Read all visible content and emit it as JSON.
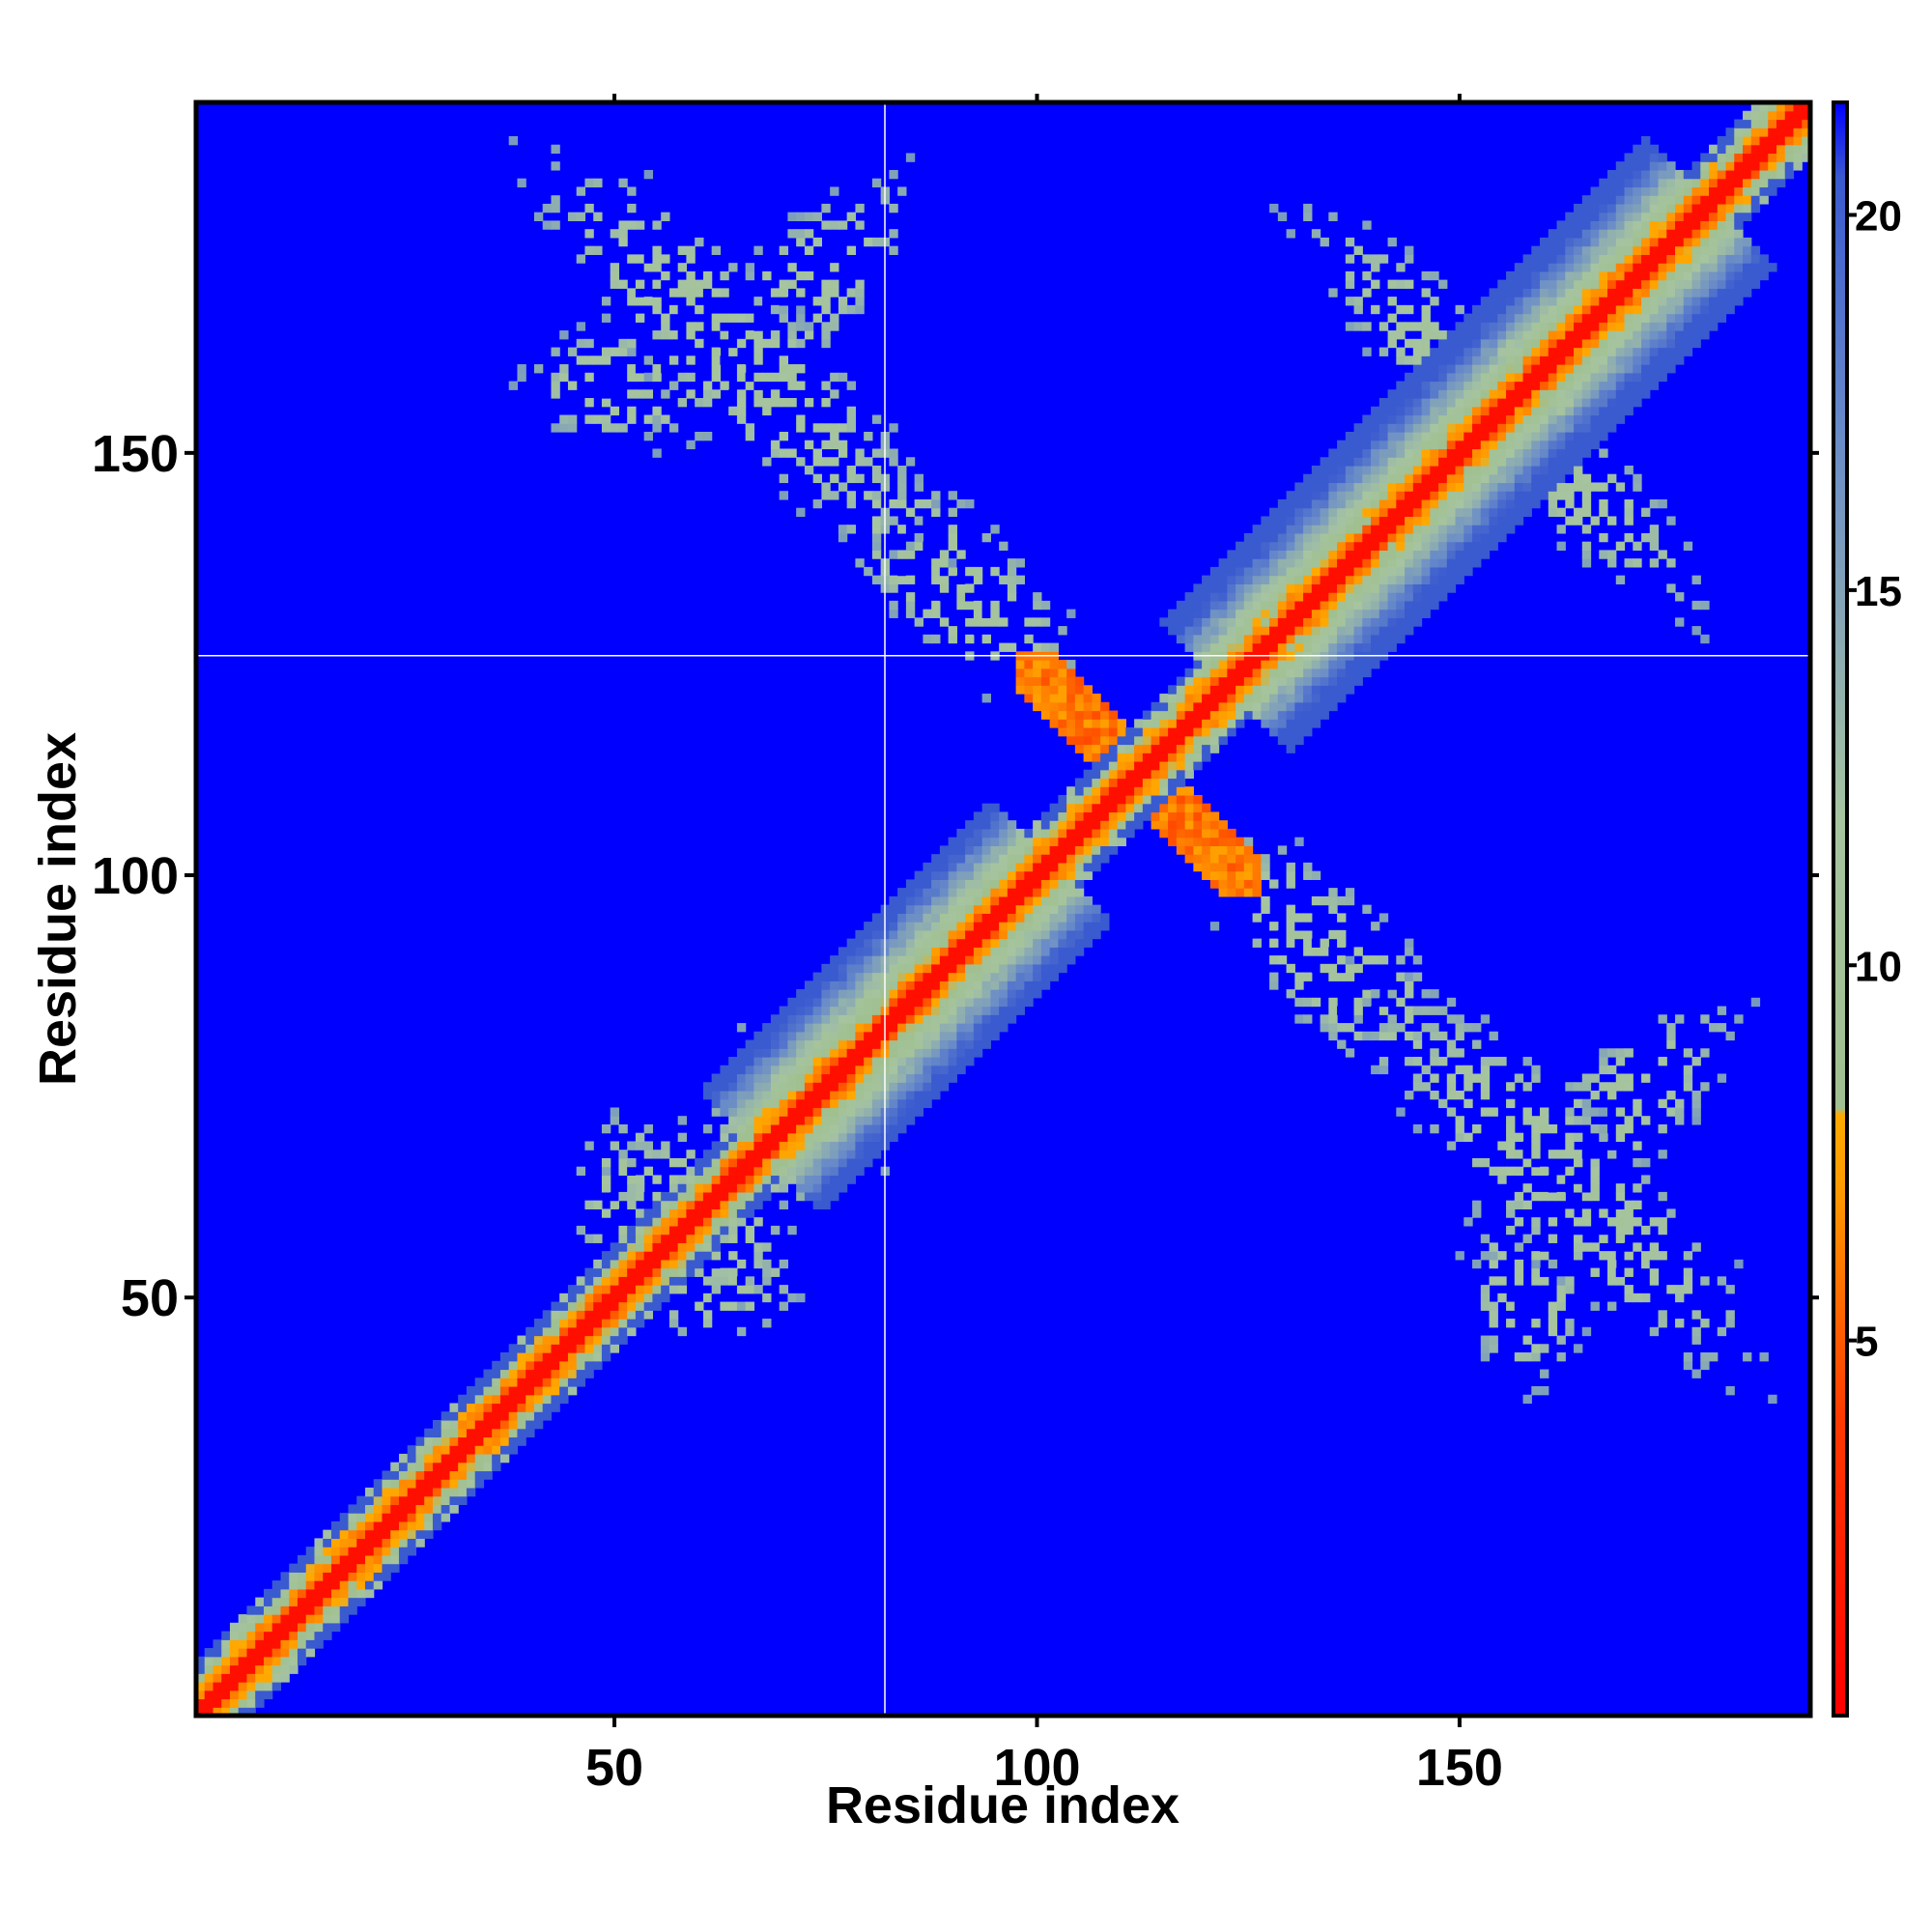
{
  "chart_data": {
    "type": "heatmap",
    "title": "",
    "xlabel": "Residue index",
    "ylabel": "Residue index",
    "xlim": [
      1,
      191
    ],
    "ylim": [
      1,
      191
    ],
    "x_ticks": [
      {
        "value": 50,
        "label": "50"
      },
      {
        "value": 100,
        "label": "100"
      },
      {
        "value": 150,
        "label": "150"
      }
    ],
    "y_ticks": [
      {
        "value": 50,
        "label": "50"
      },
      {
        "value": 100,
        "label": "100"
      },
      {
        "value": 150,
        "label": "150"
      }
    ],
    "colorbar": {
      "range": [
        0,
        21.5
      ],
      "ticks": [
        {
          "value": 5,
          "label": "5"
        },
        {
          "value": 10,
          "label": "10"
        },
        {
          "value": 15,
          "label": "15"
        },
        {
          "value": 20,
          "label": "20"
        }
      ],
      "stops": [
        {
          "value": 0,
          "color": "#ff0000"
        },
        {
          "value": 4,
          "color": "#ff3a00"
        },
        {
          "value": 7,
          "color": "#ff9900"
        },
        {
          "value": 8,
          "color": "#ffaa00"
        },
        {
          "value": 8.1,
          "color": "#a0c090"
        },
        {
          "value": 12,
          "color": "#a6c4a0"
        },
        {
          "value": 17,
          "color": "#6a8cc8"
        },
        {
          "value": 20.5,
          "color": "#3a5ad0"
        },
        {
          "value": 21.5,
          "color": "#0000ff"
        }
      ]
    },
    "background_value": 21.5,
    "background_color": "#0000ff",
    "grid": false,
    "reference_lines": [
      {
        "axis": "x",
        "value": 82
      },
      {
        "axis": "y",
        "value": 126
      }
    ],
    "features": [
      {
        "name": "main-diagonal",
        "from": [
          1,
          1
        ],
        "to": [
          191,
          191
        ]
      },
      {
        "name": "cross-diagonal",
        "center": [
          112,
          112
        ],
        "from": [
          105,
          118
        ],
        "to": [
          118,
          105
        ]
      },
      {
        "name": "upper-left-contact-region",
        "x_range": [
          40,
          98
        ],
        "y_range": [
          132,
          182
        ]
      },
      {
        "name": "upper-right-contact-region",
        "x_range": [
          124,
          182
        ],
        "y_range": [
          126,
          180
        ]
      },
      {
        "name": "lower-right-contact-region",
        "x_range": [
          126,
          188
        ],
        "y_range": [
          42,
          100
        ]
      },
      {
        "name": "lower-left-contact-cluster",
        "x_range": [
          40,
          84
        ],
        "y_range": [
          42,
          84
        ]
      }
    ]
  }
}
